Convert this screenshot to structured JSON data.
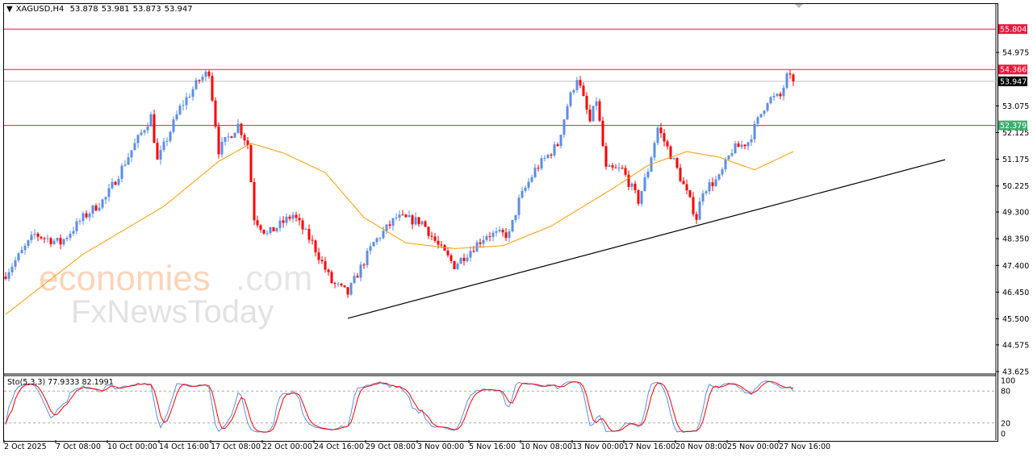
{
  "header": {
    "symbol": "XAGUSD,H4",
    "open": "53.878",
    "high": "53.981",
    "low": "53.873",
    "close": "53.947"
  },
  "watermark": {
    "line1": "economies.com",
    "line2": "FxNewsToday"
  },
  "colors": {
    "bull": "#5b8ee6",
    "bear": "#ff0000",
    "ma": "#ff9900",
    "level": "#e8193c",
    "level_label_green": "#3fae6f",
    "trendline": "#000000",
    "sto_main": "#5b8ee6",
    "sto_signal": "#ff0000"
  },
  "chart_data": {
    "type": "candlestick",
    "title": "XAGUSD,H4",
    "ylim": [
      43.625,
      55.97
    ],
    "y_ticks": [
      "54.975",
      "53.075",
      "52.125",
      "51.175",
      "50.225",
      "49.300",
      "48.350",
      "47.400",
      "46.450",
      "45.500",
      "44.575",
      "43.625"
    ],
    "x_ticks": [
      "2 Oct 2025",
      "7 Oct 08:00",
      "10 Oct 00:00",
      "14 Oct 16:00",
      "17 Oct 08:00",
      "22 Oct 00:00",
      "24 Oct 16:00",
      "29 Oct 08:00",
      "3 Nov 00:00",
      "5 Nov 16:00",
      "10 Nov 08:00",
      "13 Nov 00:00",
      "17 Nov 16:00",
      "20 Nov 08:00",
      "25 Nov 00:00",
      "27 Nov 16:00"
    ],
    "x_tick_every_bars": 16,
    "bar_count": 245,
    "close_path": [
      [
        0,
        47.1
      ],
      [
        9,
        48.5
      ],
      [
        17,
        48.2
      ],
      [
        24,
        49.1
      ],
      [
        31,
        49.8
      ],
      [
        39,
        51.5
      ],
      [
        45,
        52.7
      ],
      [
        47,
        51.1
      ],
      [
        54,
        53.0
      ],
      [
        60,
        54.0
      ],
      [
        63,
        54.3
      ],
      [
        66,
        51.5
      ],
      [
        72,
        52.4
      ],
      [
        75,
        51.7
      ],
      [
        77,
        49.1
      ],
      [
        81,
        48.5
      ],
      [
        89,
        49.2
      ],
      [
        95,
        48.2
      ],
      [
        101,
        46.8
      ],
      [
        106,
        46.4
      ],
      [
        109,
        47.1
      ],
      [
        114,
        48.2
      ],
      [
        121,
        49.1
      ],
      [
        129,
        48.95
      ],
      [
        134,
        48.1
      ],
      [
        139,
        47.4
      ],
      [
        144,
        47.95
      ],
      [
        149,
        48.5
      ],
      [
        156,
        48.5
      ],
      [
        159,
        49.7
      ],
      [
        164,
        50.8
      ],
      [
        171,
        51.7
      ],
      [
        174,
        53.1
      ],
      [
        177,
        54.1
      ],
      [
        181,
        52.5
      ],
      [
        183,
        53.3
      ],
      [
        186,
        50.8
      ],
      [
        191,
        50.8
      ],
      [
        196,
        49.7
      ],
      [
        199,
        50.8
      ],
      [
        202,
        52.3
      ],
      [
        207,
        51.1
      ],
      [
        214,
        49.1
      ],
      [
        216,
        50.1
      ],
      [
        221,
        50.5
      ],
      [
        225,
        51.5
      ],
      [
        230,
        51.8
      ],
      [
        234,
        52.8
      ],
      [
        236,
        53.3
      ],
      [
        240,
        53.4
      ],
      [
        242,
        54.1
      ],
      [
        244,
        53.947
      ]
    ],
    "moving_average_path": [
      [
        0,
        45.66
      ],
      [
        24,
        47.8
      ],
      [
        49,
        49.5
      ],
      [
        66,
        51.1
      ],
      [
        76,
        51.74
      ],
      [
        86,
        51.4
      ],
      [
        99,
        50.7
      ],
      [
        111,
        49.1
      ],
      [
        124,
        48.2
      ],
      [
        139,
        48.0
      ],
      [
        154,
        48.1
      ],
      [
        169,
        48.8
      ],
      [
        179,
        49.5
      ],
      [
        189,
        50.2
      ],
      [
        199,
        50.96
      ],
      [
        211,
        51.45
      ],
      [
        221,
        51.25
      ],
      [
        232,
        50.8
      ],
      [
        244,
        51.45
      ]
    ],
    "horizontal_levels": [
      {
        "price": 55.804,
        "label": "55.804",
        "color": "#e8193c"
      },
      {
        "price": 54.366,
        "label": "54.366",
        "color": "#e8193c"
      },
      {
        "price": 52.379,
        "label": "52.379",
        "color": "#3fae6f"
      }
    ],
    "current_price": {
      "price": 53.947,
      "label": "53.947"
    },
    "trendline": {
      "from": [
        106,
        45.52
      ],
      "to": [
        291,
        51.16
      ]
    },
    "stochastic": {
      "label": "Sto(5,3,3) 77.9333 82.1991",
      "k": 5,
      "d": 3,
      "slowing": 3,
      "levels": [
        20,
        80
      ],
      "scale_labels": [
        "100",
        "80",
        "20",
        "0"
      ]
    }
  }
}
